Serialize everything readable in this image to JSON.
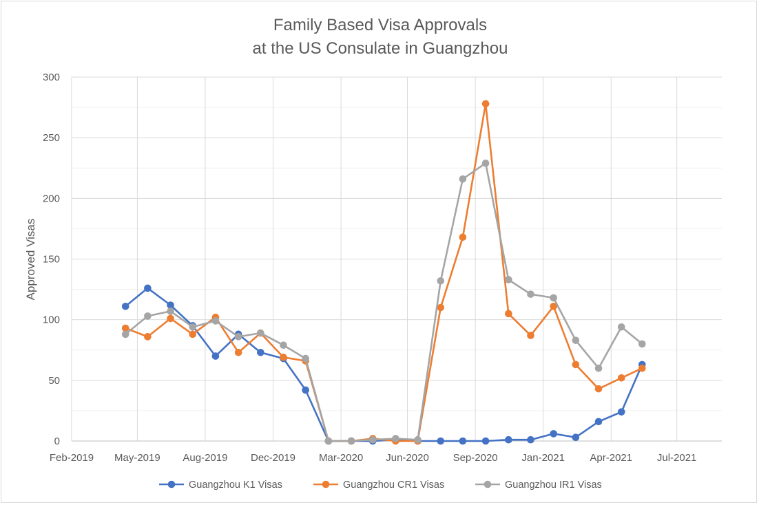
{
  "chart_data": {
    "type": "line",
    "title": [
      "Family Based Visa Approvals",
      "at the US Consulate in Guangzhou"
    ],
    "xlabel": "",
    "ylabel": "Approved Visas",
    "x_type": "date",
    "xlim": [
      "2019-02-01",
      "2021-07-01"
    ],
    "ylim": [
      0,
      300
    ],
    "x_ticks": [
      {
        "date": "2019-02-01",
        "label": "Feb-2019"
      },
      {
        "date": "2019-05-01",
        "label": "May-2019"
      },
      {
        "date": "2019-08-01",
        "label": "Aug-2019"
      },
      {
        "date": "2019-11-01",
        "label": "Dec-2019"
      },
      {
        "date": "2020-02-01",
        "label": "Mar-2020"
      },
      {
        "date": "2020-05-01",
        "label": "Jun-2020"
      },
      {
        "date": "2020-08-01",
        "label": "Sep-2020"
      },
      {
        "date": "2020-11-01",
        "label": "Jan-2021"
      },
      {
        "date": "2021-02-01",
        "label": "Apr-2021"
      },
      {
        "date": "2021-05-01",
        "label": "Jul-2021"
      }
    ],
    "y_ticks": [
      0,
      50,
      100,
      150,
      200,
      250,
      300
    ],
    "grid": true,
    "legend_position": "bottom",
    "x": [
      "2019-04-15",
      "2019-05-15",
      "2019-06-15",
      "2019-07-15",
      "2019-08-15",
      "2019-09-15",
      "2019-10-15",
      "2019-11-15",
      "2019-12-15",
      "2020-01-15",
      "2020-02-15",
      "2020-03-15",
      "2020-04-15",
      "2020-05-15",
      "2020-06-15",
      "2020-07-15",
      "2020-08-15",
      "2020-09-15",
      "2020-10-15",
      "2020-11-15",
      "2020-12-15",
      "2021-01-15",
      "2021-02-15",
      "2021-03-15"
    ],
    "series": [
      {
        "name": "Guangzhou K1 Visas",
        "color": "#4472c4",
        "values": [
          111,
          126,
          112,
          95,
          70,
          88,
          73,
          68,
          42,
          0,
          0,
          0,
          1,
          0,
          0,
          0,
          0,
          1,
          1,
          6,
          3,
          16,
          24,
          63
        ]
      },
      {
        "name": "Guangzhou CR1 Visas",
        "color": "#ed7d31",
        "values": [
          93,
          86,
          101,
          88,
          102,
          73,
          89,
          69,
          66,
          0,
          0,
          2,
          0,
          0,
          110,
          168,
          278,
          105,
          87,
          111,
          63,
          43,
          52,
          60
        ]
      },
      {
        "name": "Guangzhou IR1 Visas",
        "color": "#a5a5a5",
        "values": [
          88,
          103,
          107,
          94,
          99,
          86,
          89,
          79,
          68,
          0,
          0,
          1,
          2,
          1,
          132,
          216,
          229,
          133,
          121,
          118,
          83,
          60,
          94,
          80
        ]
      }
    ]
  }
}
